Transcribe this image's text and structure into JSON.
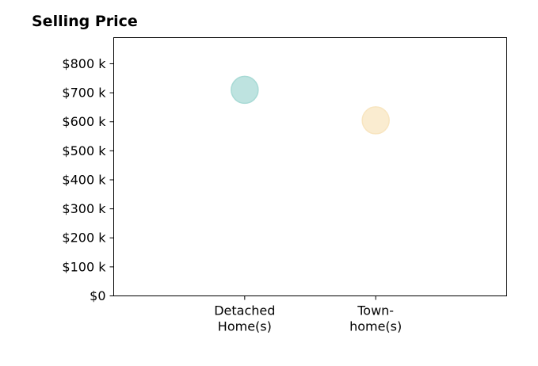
{
  "chart_data": {
    "type": "scatter",
    "title": "Selling Price",
    "xlabel": "",
    "ylabel": "",
    "categories": [
      [
        "Detached",
        "Home(s)"
      ],
      [
        "Town-",
        "home(s)"
      ]
    ],
    "points": [
      {
        "category": 0,
        "value": 710000,
        "color": "#a8dad5"
      },
      {
        "category": 1,
        "value": 605000,
        "color": "#f8e5c0"
      }
    ],
    "y_ticks": [
      {
        "value": 0,
        "label": "$0"
      },
      {
        "value": 100000,
        "label": "$100 k"
      },
      {
        "value": 200000,
        "label": "$200 k"
      },
      {
        "value": 300000,
        "label": "$300 k"
      },
      {
        "value": 400000,
        "label": "$400 k"
      },
      {
        "value": 500000,
        "label": "$500 k"
      },
      {
        "value": 600000,
        "label": "$600 k"
      },
      {
        "value": 700000,
        "label": "$700 k"
      },
      {
        "value": 800000,
        "label": "$800 k"
      }
    ],
    "ylim": [
      0,
      890000
    ],
    "grid": false,
    "legend": "none"
  }
}
